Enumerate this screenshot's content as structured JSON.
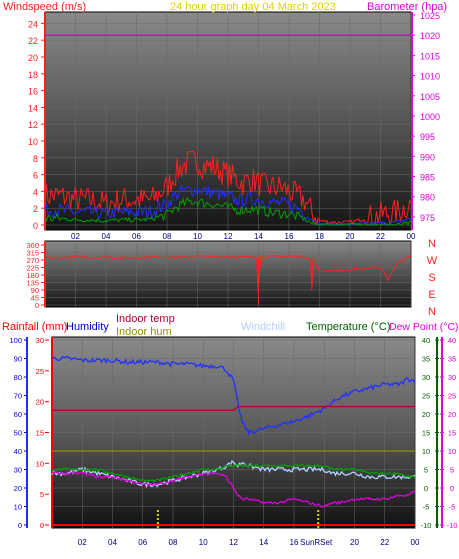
{
  "header": {
    "windspeed_label": "Windspeed (m/s)",
    "graph_date": "24 hour graph day   04 March 2023",
    "barometer_label": "Barometer (hpa)"
  },
  "colors": {
    "red": "#ff2020",
    "blue": "#2030ff",
    "green": "#00a000",
    "magenta": "#e000e0",
    "yellow": "#e0d000",
    "darkred": "#b00030",
    "olive": "#909000",
    "lightblue": "#b0d0ff",
    "humidity_blue": "#0000d0",
    "temp_green": "#006000",
    "rain_red": "#ff0000"
  },
  "x_ticks": [
    "02",
    "04",
    "06",
    "08",
    "10",
    "12",
    "14",
    "16",
    "18",
    "20",
    "22",
    "00"
  ],
  "chart_data": [
    {
      "type": "line",
      "name": "windspeed-barometer",
      "x_hours": [
        0,
        1,
        2,
        3,
        4,
        5,
        6,
        7,
        8,
        8.5,
        9,
        9.5,
        10,
        10.5,
        11,
        11.5,
        12,
        12.5,
        13,
        13.5,
        14,
        14.5,
        15,
        15.5,
        16,
        16.5,
        17,
        17.5,
        18,
        19,
        20,
        21,
        22,
        23,
        24
      ],
      "series": [
        {
          "name": "gust",
          "color_key": "red",
          "values": [
            3.5,
            3.5,
            3.0,
            3.0,
            2.5,
            3.0,
            3.0,
            3.0,
            4.5,
            6.0,
            7.0,
            7.5,
            7.5,
            7.0,
            7.0,
            6.5,
            6.0,
            5.5,
            5.0,
            5.5,
            5.0,
            4.5,
            4.5,
            4.5,
            4.0,
            3.5,
            3.0,
            1.5,
            0.5,
            0.3,
            0.3,
            0.8,
            1.2,
            1.5,
            2.5
          ]
        },
        {
          "name": "average",
          "color_key": "blue",
          "values": [
            1.8,
            1.8,
            1.5,
            1.5,
            1.3,
            1.5,
            1.5,
            1.6,
            2.5,
            3.5,
            4.0,
            4.2,
            4.2,
            4.0,
            3.8,
            3.6,
            3.4,
            3.0,
            3.0,
            3.1,
            3.0,
            2.8,
            2.6,
            2.6,
            2.4,
            2.0,
            1.6,
            0.6,
            0.1,
            0.0,
            0.0,
            0.1,
            0.2,
            0.3,
            0.8
          ]
        },
        {
          "name": "min",
          "color_key": "green",
          "values": [
            0.8,
            0.8,
            0.6,
            0.6,
            0.5,
            0.6,
            0.6,
            0.7,
            1.2,
            2.0,
            2.5,
            2.8,
            2.8,
            2.6,
            2.5,
            2.3,
            2.1,
            1.8,
            1.8,
            1.9,
            1.8,
            1.6,
            1.4,
            1.4,
            1.3,
            1.0,
            0.7,
            0.2,
            0.0,
            0.0,
            0.0,
            0.0,
            0.0,
            0.0,
            0.2
          ]
        }
      ],
      "barometer": {
        "color_key": "magenta",
        "value": 1020
      },
      "left_axis": {
        "min": 0,
        "max": 25,
        "ticks": [
          0,
          2,
          4,
          6,
          8,
          10,
          12,
          14,
          16,
          18,
          20,
          22,
          24
        ]
      },
      "right_axis": {
        "min": 973,
        "max": 1025,
        "ticks": [
          975,
          980,
          985,
          990,
          995,
          1000,
          1005,
          1010,
          1015,
          1020,
          1025
        ]
      }
    },
    {
      "type": "line",
      "name": "wind-direction",
      "x_hours": [
        0,
        1,
        2,
        3,
        4,
        5,
        6,
        7,
        8,
        9,
        10,
        11,
        12,
        13,
        13.9,
        14,
        14.1,
        15,
        16,
        17,
        17.4,
        17.5,
        17.6,
        18,
        18.5,
        19,
        20,
        21,
        22,
        22.5,
        23,
        24
      ],
      "series": [
        {
          "name": "direction",
          "color_key": "red",
          "values": [
            285,
            282,
            290,
            285,
            288,
            282,
            285,
            290,
            288,
            285,
            292,
            288,
            290,
            288,
            288,
            0,
            288,
            290,
            292,
            290,
            285,
            90,
            280,
            200,
            210,
            210,
            210,
            220,
            230,
            150,
            240,
            300
          ]
        }
      ],
      "axis": {
        "min": 0,
        "max": 360,
        "ticks": [
          0,
          45,
          90,
          135,
          180,
          225,
          270,
          315,
          360
        ]
      },
      "compass": [
        "N",
        "W",
        "S",
        "E",
        "N"
      ]
    },
    {
      "type": "line",
      "name": "temperature-humidity",
      "x_hours": [
        0,
        1,
        2,
        3,
        4,
        5,
        6,
        7,
        8,
        9,
        10,
        11,
        11.5,
        12,
        12.3,
        12.6,
        13,
        14,
        15,
        16,
        17,
        18,
        18.5,
        19,
        20,
        21,
        22,
        23,
        23.5,
        24
      ],
      "series": [
        {
          "name": "Humidity",
          "color_key": "blue",
          "axis": "humidity",
          "values": [
            90,
            90,
            89,
            89,
            89,
            88,
            88,
            88,
            87,
            87,
            86,
            86,
            84,
            78,
            65,
            55,
            50,
            52,
            54,
            56,
            59,
            63,
            66,
            69,
            72,
            74,
            76,
            76,
            79,
            78
          ]
        },
        {
          "name": "Windchill",
          "color_key": "lightblue",
          "axis": "temp",
          "values": [
            4,
            4,
            5,
            4,
            3,
            2,
            1,
            1,
            2,
            3,
            4,
            5,
            6,
            7,
            6,
            7,
            6,
            5,
            5,
            5,
            5,
            5,
            4,
            4,
            4,
            3,
            3,
            3,
            3,
            3
          ]
        },
        {
          "name": "Temperature",
          "color_key": "green",
          "axis": "temp",
          "values": [
            5,
            5,
            5,
            5,
            4,
            3,
            2,
            2,
            3,
            4,
            5,
            5,
            6,
            6,
            6,
            6,
            6,
            6,
            6,
            6,
            6,
            6,
            5,
            5,
            5,
            4,
            4,
            4,
            3,
            3
          ]
        },
        {
          "name": "Dew Point",
          "color_key": "magenta",
          "axis": "temp",
          "values": [
            4,
            4,
            4,
            3,
            3,
            2,
            1,
            1,
            2,
            3,
            4,
            4,
            3,
            0,
            -2,
            -3,
            -3,
            -4,
            -4,
            -3,
            -4,
            -5,
            -4,
            -4,
            -3,
            -3,
            -3,
            -2,
            -2,
            -1
          ]
        },
        {
          "name": "Indoor temp",
          "color_key": "darkred",
          "axis": "temp",
          "values": [
            21,
            21,
            21,
            21,
            21,
            21,
            21,
            21,
            21,
            21,
            21,
            21,
            21,
            21,
            22,
            22,
            22,
            22,
            22,
            22,
            22,
            22,
            22,
            22,
            22,
            22,
            22,
            22,
            22,
            22
          ]
        },
        {
          "name": "Indoor hum",
          "color_key": "olive",
          "axis": "humidity",
          "values": [
            40,
            40,
            40,
            40,
            40,
            40,
            40,
            40,
            40,
            40,
            40,
            40,
            40,
            40,
            40,
            40,
            40,
            40,
            40,
            40,
            40,
            40,
            40,
            40,
            40,
            40,
            40,
            40,
            40,
            40
          ]
        },
        {
          "name": "Rainfall",
          "color_key": "rain_red",
          "axis": "rain",
          "values": [
            0,
            0,
            0,
            0,
            0,
            0,
            0,
            0,
            0,
            0,
            0,
            0,
            0,
            0,
            0,
            0,
            0,
            0,
            0,
            0,
            0,
            0,
            0,
            0,
            0,
            0,
            0,
            0,
            0,
            0
          ]
        }
      ],
      "sun_markers_hours": [
        7.0,
        17.6
      ],
      "humidity_axis": {
        "min": 0,
        "max": 100,
        "ticks": [
          0,
          10,
          20,
          30,
          40,
          50,
          60,
          70,
          80,
          90,
          100
        ]
      },
      "rain_axis": {
        "min": 0,
        "max": 30,
        "ticks": [
          0,
          5,
          10,
          15,
          20,
          25,
          30
        ]
      },
      "temp_axis": {
        "min": -10,
        "max": 40,
        "ticks": [
          -10,
          -5,
          0,
          5,
          10,
          15,
          20,
          25,
          30,
          35,
          40
        ]
      }
    }
  ],
  "legend": {
    "rainfall": "Rainfall (mm)",
    "humidity": "Humidity",
    "indoor_temp": "Indoor temp",
    "indoor_hum": "Indoor hum",
    "windchill": "Windchill",
    "temperature": "Temperature (°C)",
    "dew_point": "Dew Point (°C)",
    "sunrise_sunset": "SunRSet"
  }
}
